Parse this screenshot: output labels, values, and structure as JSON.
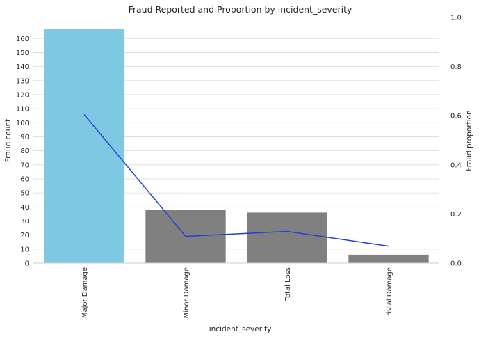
{
  "chart_data": {
    "type": "bar",
    "title": "Fraud Reported and Proportion by incident_severity",
    "xlabel": "incident_severity",
    "ylabel": "Fraud count",
    "y2label": "Fraud proportion",
    "categories": [
      "Major Damage",
      "Minor Damage",
      "Total Loss",
      "Trivial Damage"
    ],
    "series": [
      {
        "type": "bar",
        "axis": "left",
        "values": [
          167,
          38,
          36,
          6
        ],
        "colors": [
          "#7ec8e3",
          "#808080",
          "#808080",
          "#808080"
        ]
      },
      {
        "type": "line",
        "axis": "right",
        "values": [
          0.605,
          0.109,
          0.129,
          0.069
        ],
        "color": "#1f3fd6"
      }
    ],
    "ylim": [
      0,
      175
    ],
    "yticks": [
      0,
      10,
      20,
      30,
      40,
      50,
      60,
      70,
      80,
      90,
      100,
      110,
      120,
      130,
      140,
      150,
      160
    ],
    "y2lim": [
      0,
      1
    ],
    "y2ticks": [
      "0.0",
      "0.2",
      "0.4",
      "0.6",
      "0.8",
      "1.0"
    ],
    "grid": true
  }
}
